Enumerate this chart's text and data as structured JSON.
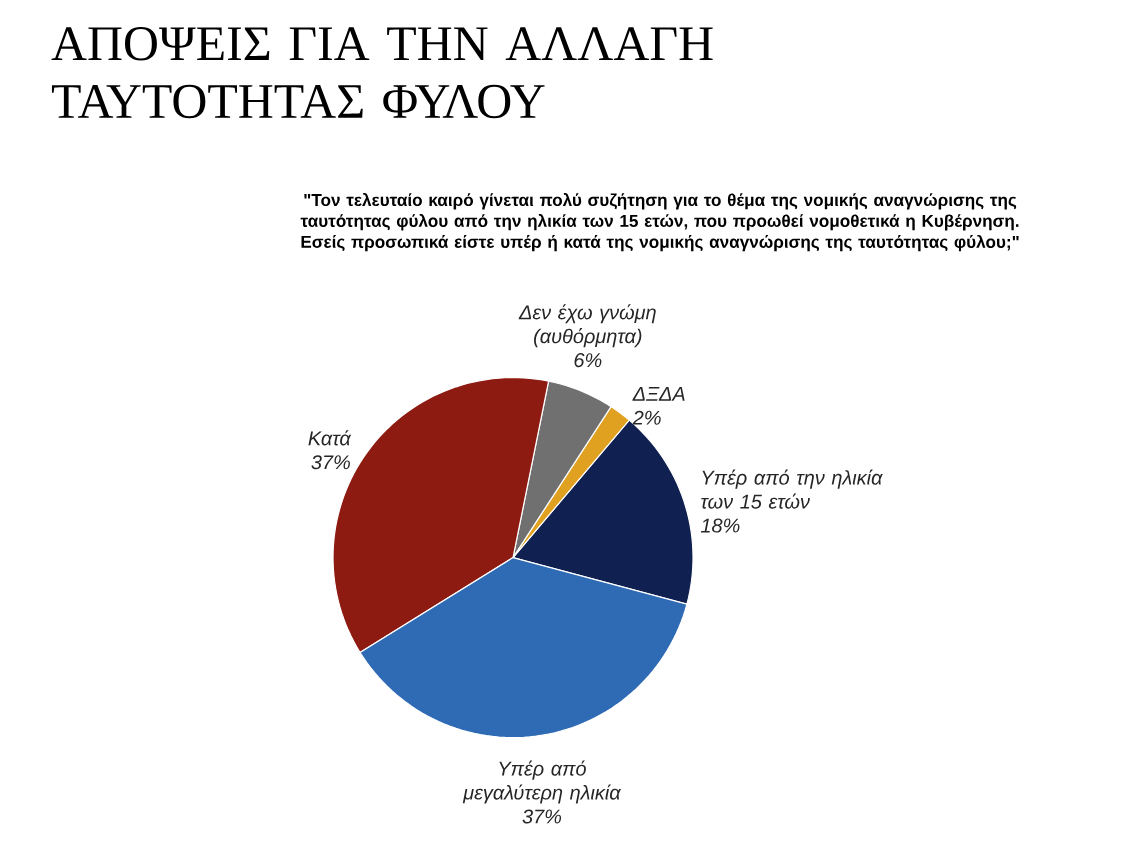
{
  "chart_data": {
    "type": "pie",
    "title": "ΑΠΟΨΕΙΣ ΓΙΑ ΤΗΝ ΑΛΛΑΓΗ ΤΑΥΤΟΤΗΤΑΣ ΦΥΛΟΥ",
    "subtitle": "\"Τον τελευταίο καιρό γίνεται πολύ συζήτηση για το θέμα της νομικής αναγνώρισης της ταυτότητας φύλου από την ηλικία των 15 ετών, που προωθεί νομοθετικά η Κυβέρνηση. Εσείς προσωπικά είστε υπέρ ή κατά της νομικής αναγνώρισης της ταυτότητας φύλου;\"",
    "categories": [
      "Υπέρ από την ηλικία των 15 ετών",
      "ΔΞΔΑ",
      "Δεν έχω γνώμη (αυθόρμητα)",
      "Κατά",
      "Υπέρ από μεγαλύτερη ηλικία"
    ],
    "values": [
      18,
      2,
      6,
      37,
      37
    ],
    "colors": [
      "#102050",
      "#e0a020",
      "#707070",
      "#8e1b12",
      "#2f6bb5"
    ],
    "value_labels": [
      "18%",
      "2%",
      "6%",
      "37%",
      "37%"
    ]
  }
}
